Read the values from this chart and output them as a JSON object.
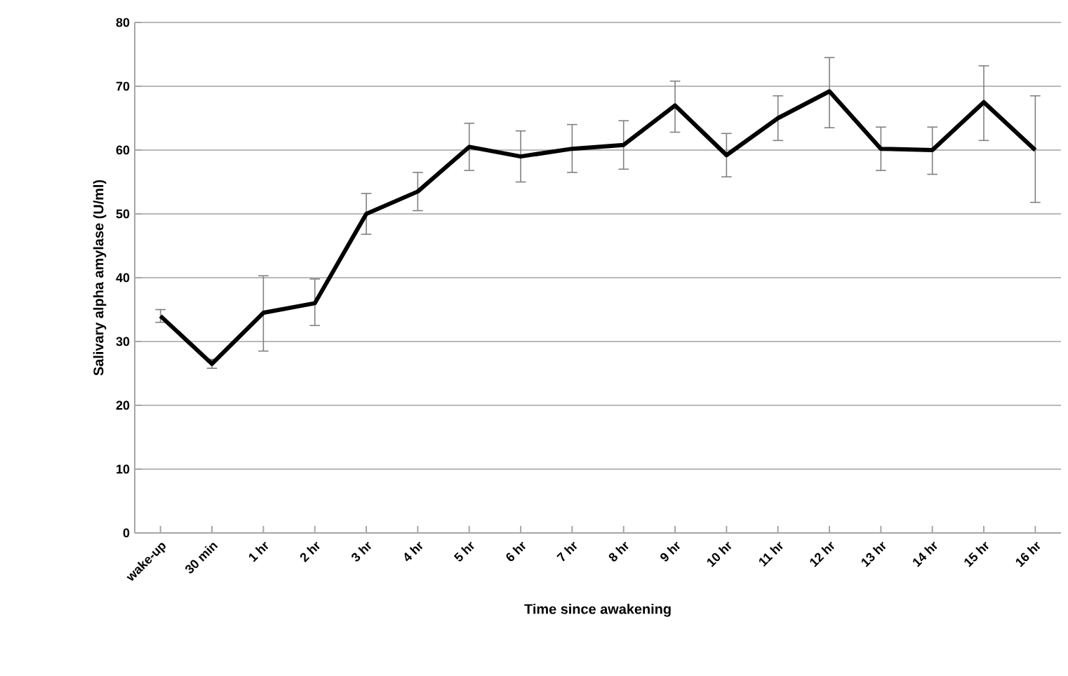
{
  "chart_data": {
    "type": "line",
    "xlabel": "Time since awakening",
    "ylabel": "Salivary alpha amylase (U/ml)",
    "categories": [
      "wake-up",
      "30 min",
      "1 hr",
      "2 hr",
      "3 hr",
      "4 hr",
      "5 hr",
      "6 hr",
      "7 hr",
      "8 hr",
      "9 hr",
      "10 hr",
      "11 hr",
      "12 hr",
      "13 hr",
      "14 hr",
      "15 hr",
      "16 hr"
    ],
    "series": [
      {
        "color": "#000000",
        "values": [
          34,
          26.5,
          34.5,
          36,
          50,
          53.5,
          60.5,
          59,
          60.2,
          60.8,
          67,
          59.2,
          65,
          69.2,
          60.2,
          60,
          67.5,
          60
        ],
        "errors": [
          [
            33,
            35
          ],
          [
            25.8,
            27.2
          ],
          [
            28.5,
            40.3
          ],
          [
            32.5,
            39.8
          ],
          [
            46.8,
            53.2
          ],
          [
            50.5,
            56.5
          ],
          [
            56.8,
            64.2
          ],
          [
            55,
            63
          ],
          [
            56.5,
            64
          ],
          [
            57,
            64.6
          ],
          [
            62.8,
            70.8
          ],
          [
            55.8,
            62.6
          ],
          [
            61.5,
            68.5
          ],
          [
            63.5,
            74.5
          ],
          [
            56.8,
            63.6
          ],
          [
            56.2,
            63.6
          ],
          [
            61.5,
            73.2
          ],
          [
            51.8,
            68.5
          ]
        ]
      }
    ],
    "ylim": [
      0,
      80
    ],
    "yticks": [
      0,
      10,
      20,
      30,
      40,
      50,
      60,
      70,
      80
    ],
    "grid": "y",
    "marker": "none",
    "line_style": "solid"
  }
}
